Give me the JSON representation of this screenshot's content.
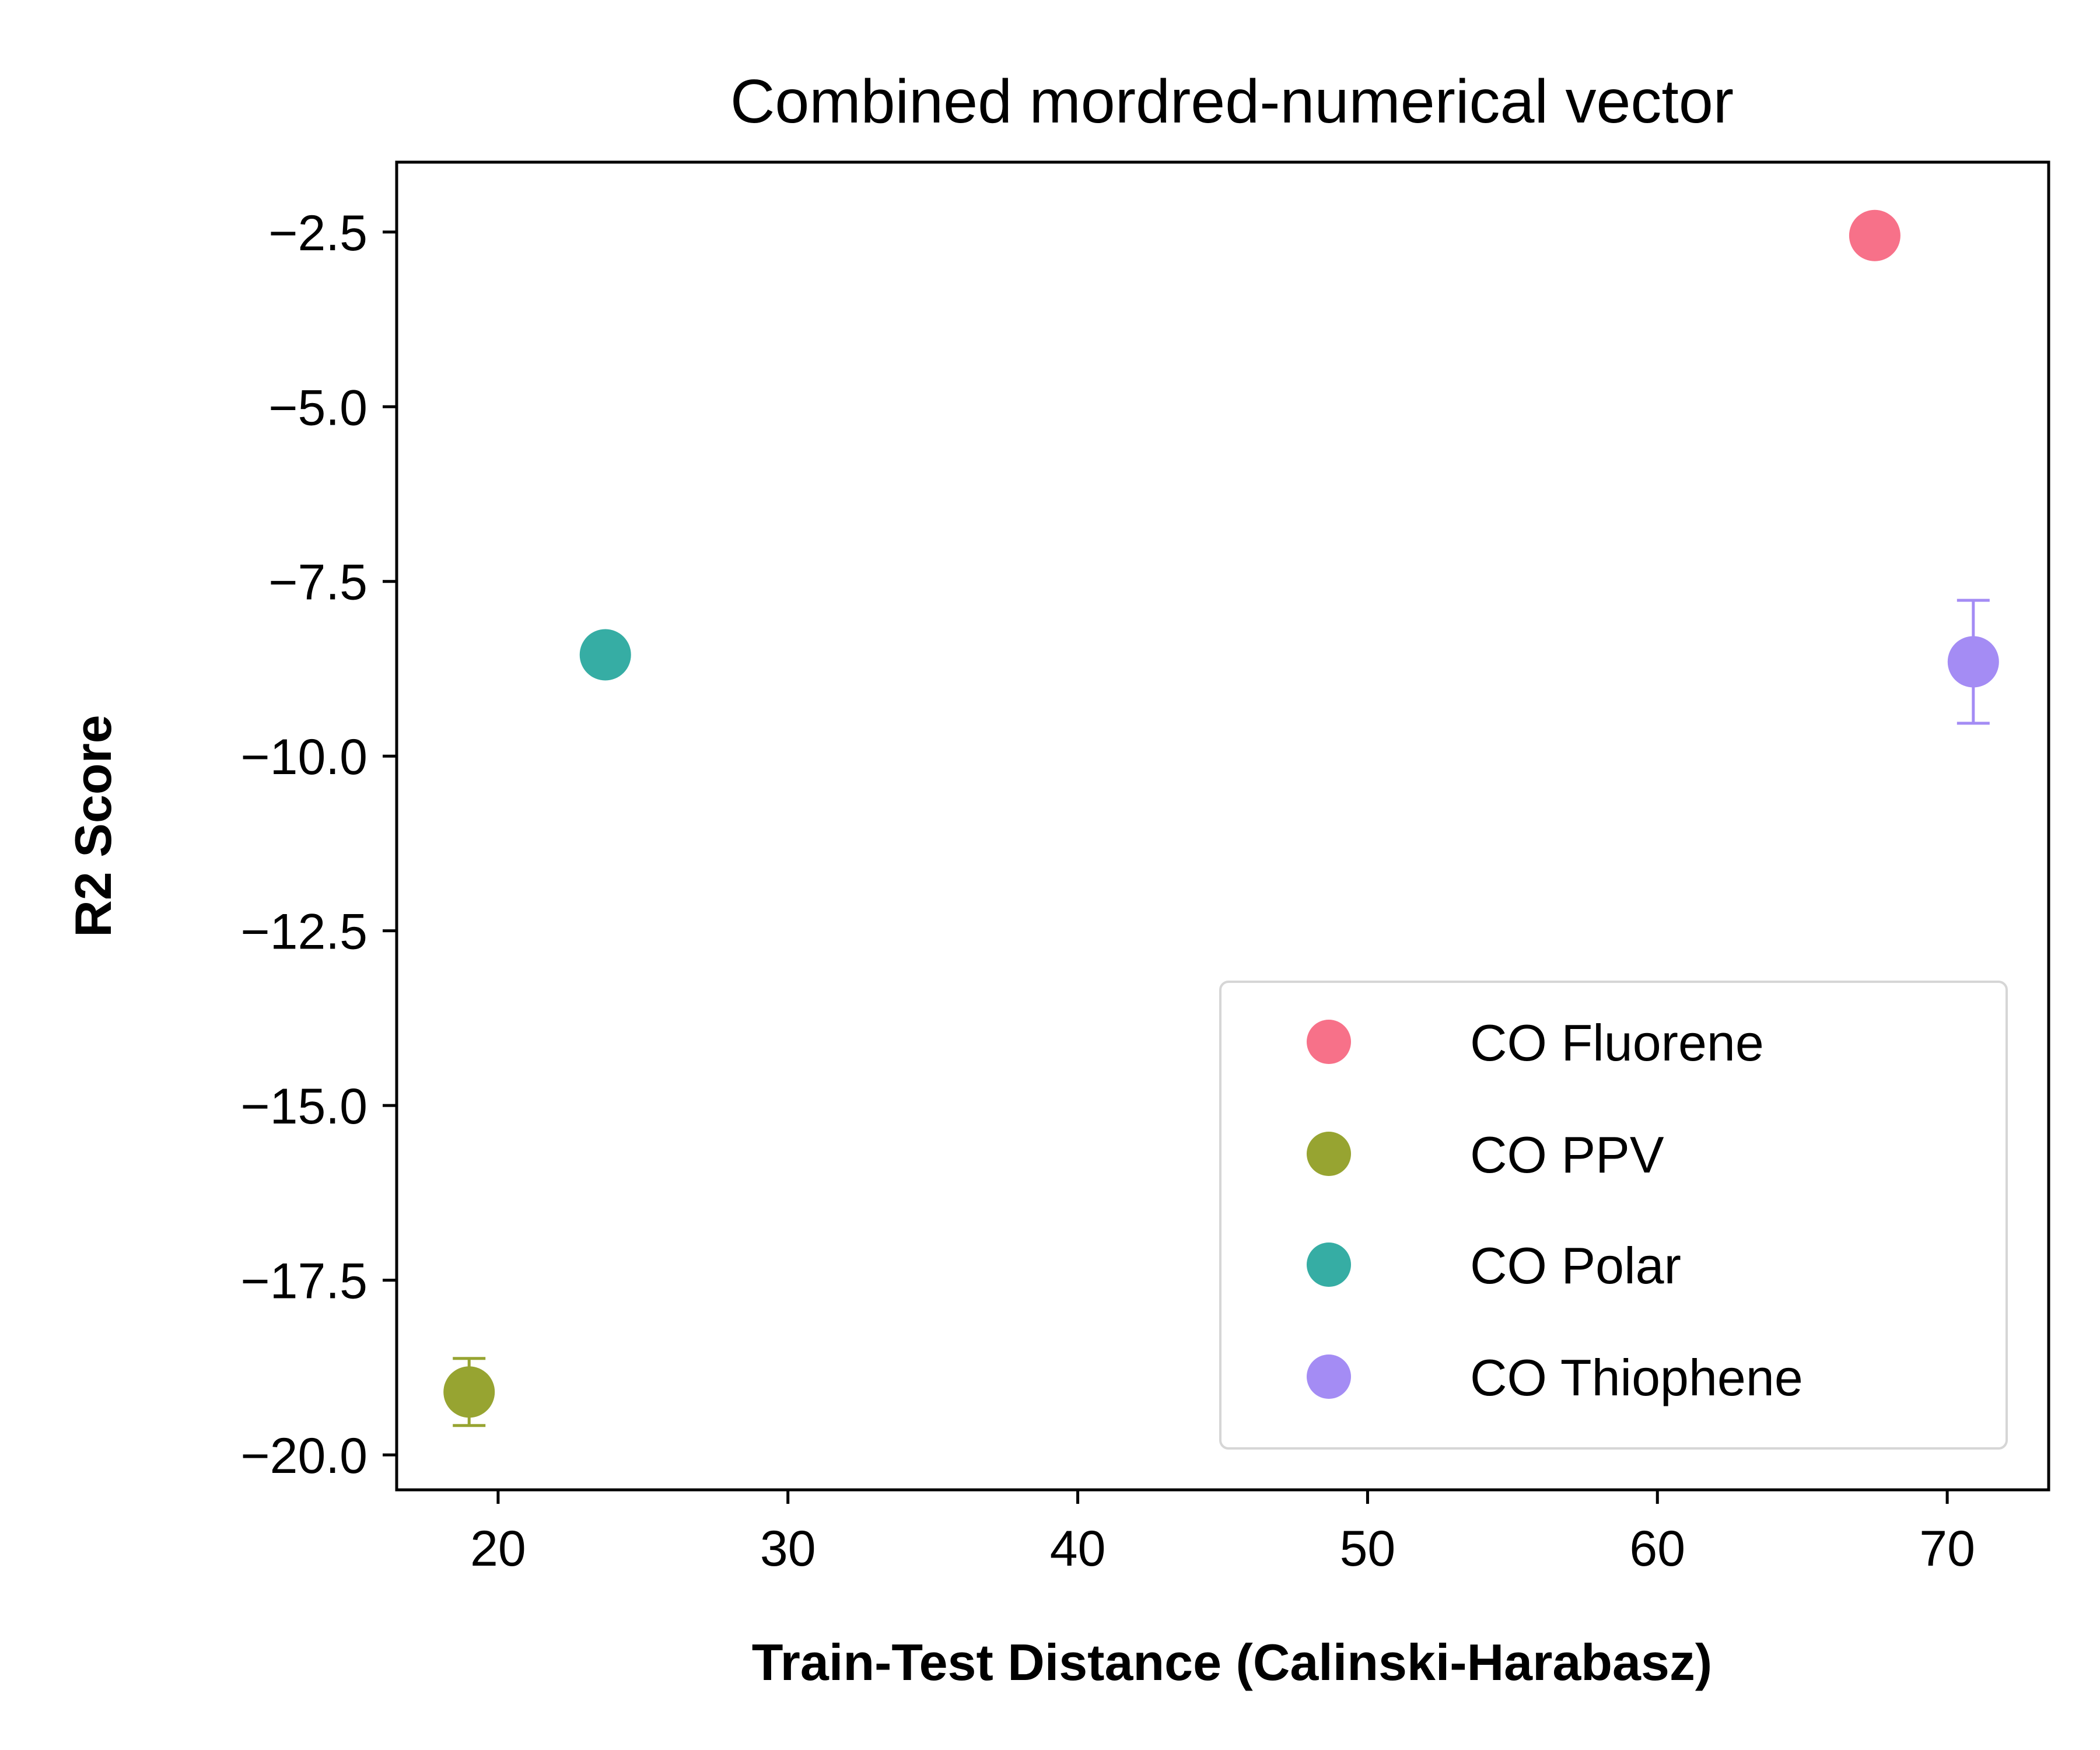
{
  "chart_data": {
    "type": "scatter",
    "title": "Combined mordred-numerical vector",
    "xlabel": "Train-Test Distance (Calinski-Harabasz)",
    "ylabel": "R2 Score",
    "xlim": [
      16.5,
      73.5
    ],
    "ylim": [
      -20.5,
      -1.5
    ],
    "xticks": [
      20,
      30,
      40,
      50,
      60,
      70
    ],
    "xtick_labels": [
      "20",
      "30",
      "40",
      "50",
      "60",
      "70"
    ],
    "yticks": [
      -2.5,
      -5.0,
      -7.5,
      -10.0,
      -12.5,
      -15.0,
      -17.5,
      -20.0
    ],
    "ytick_labels": [
      "−2.5",
      "−5.0",
      "−7.5",
      "−10.0",
      "−12.5",
      "−15.0",
      "−17.5",
      "−20.0"
    ],
    "grid": false,
    "legend_position": "lower right",
    "series": [
      {
        "name": "CO Fluorene",
        "color": "#f77189",
        "x": [
          67.5
        ],
        "y": [
          -2.55
        ],
        "yerr": [
          0.0
        ]
      },
      {
        "name": "CO PPV",
        "color": "#97a431",
        "x": [
          19.0
        ],
        "y": [
          -19.1
        ],
        "yerr": [
          0.48
        ]
      },
      {
        "name": "CO Polar",
        "color": "#36ada4",
        "x": [
          23.7
        ],
        "y": [
          -8.55
        ],
        "yerr": [
          0.0
        ]
      },
      {
        "name": "CO Thiophene",
        "color": "#a48cf4",
        "x": [
          70.9
        ],
        "y": [
          -8.65
        ],
        "yerr": [
          0.88
        ]
      }
    ]
  }
}
